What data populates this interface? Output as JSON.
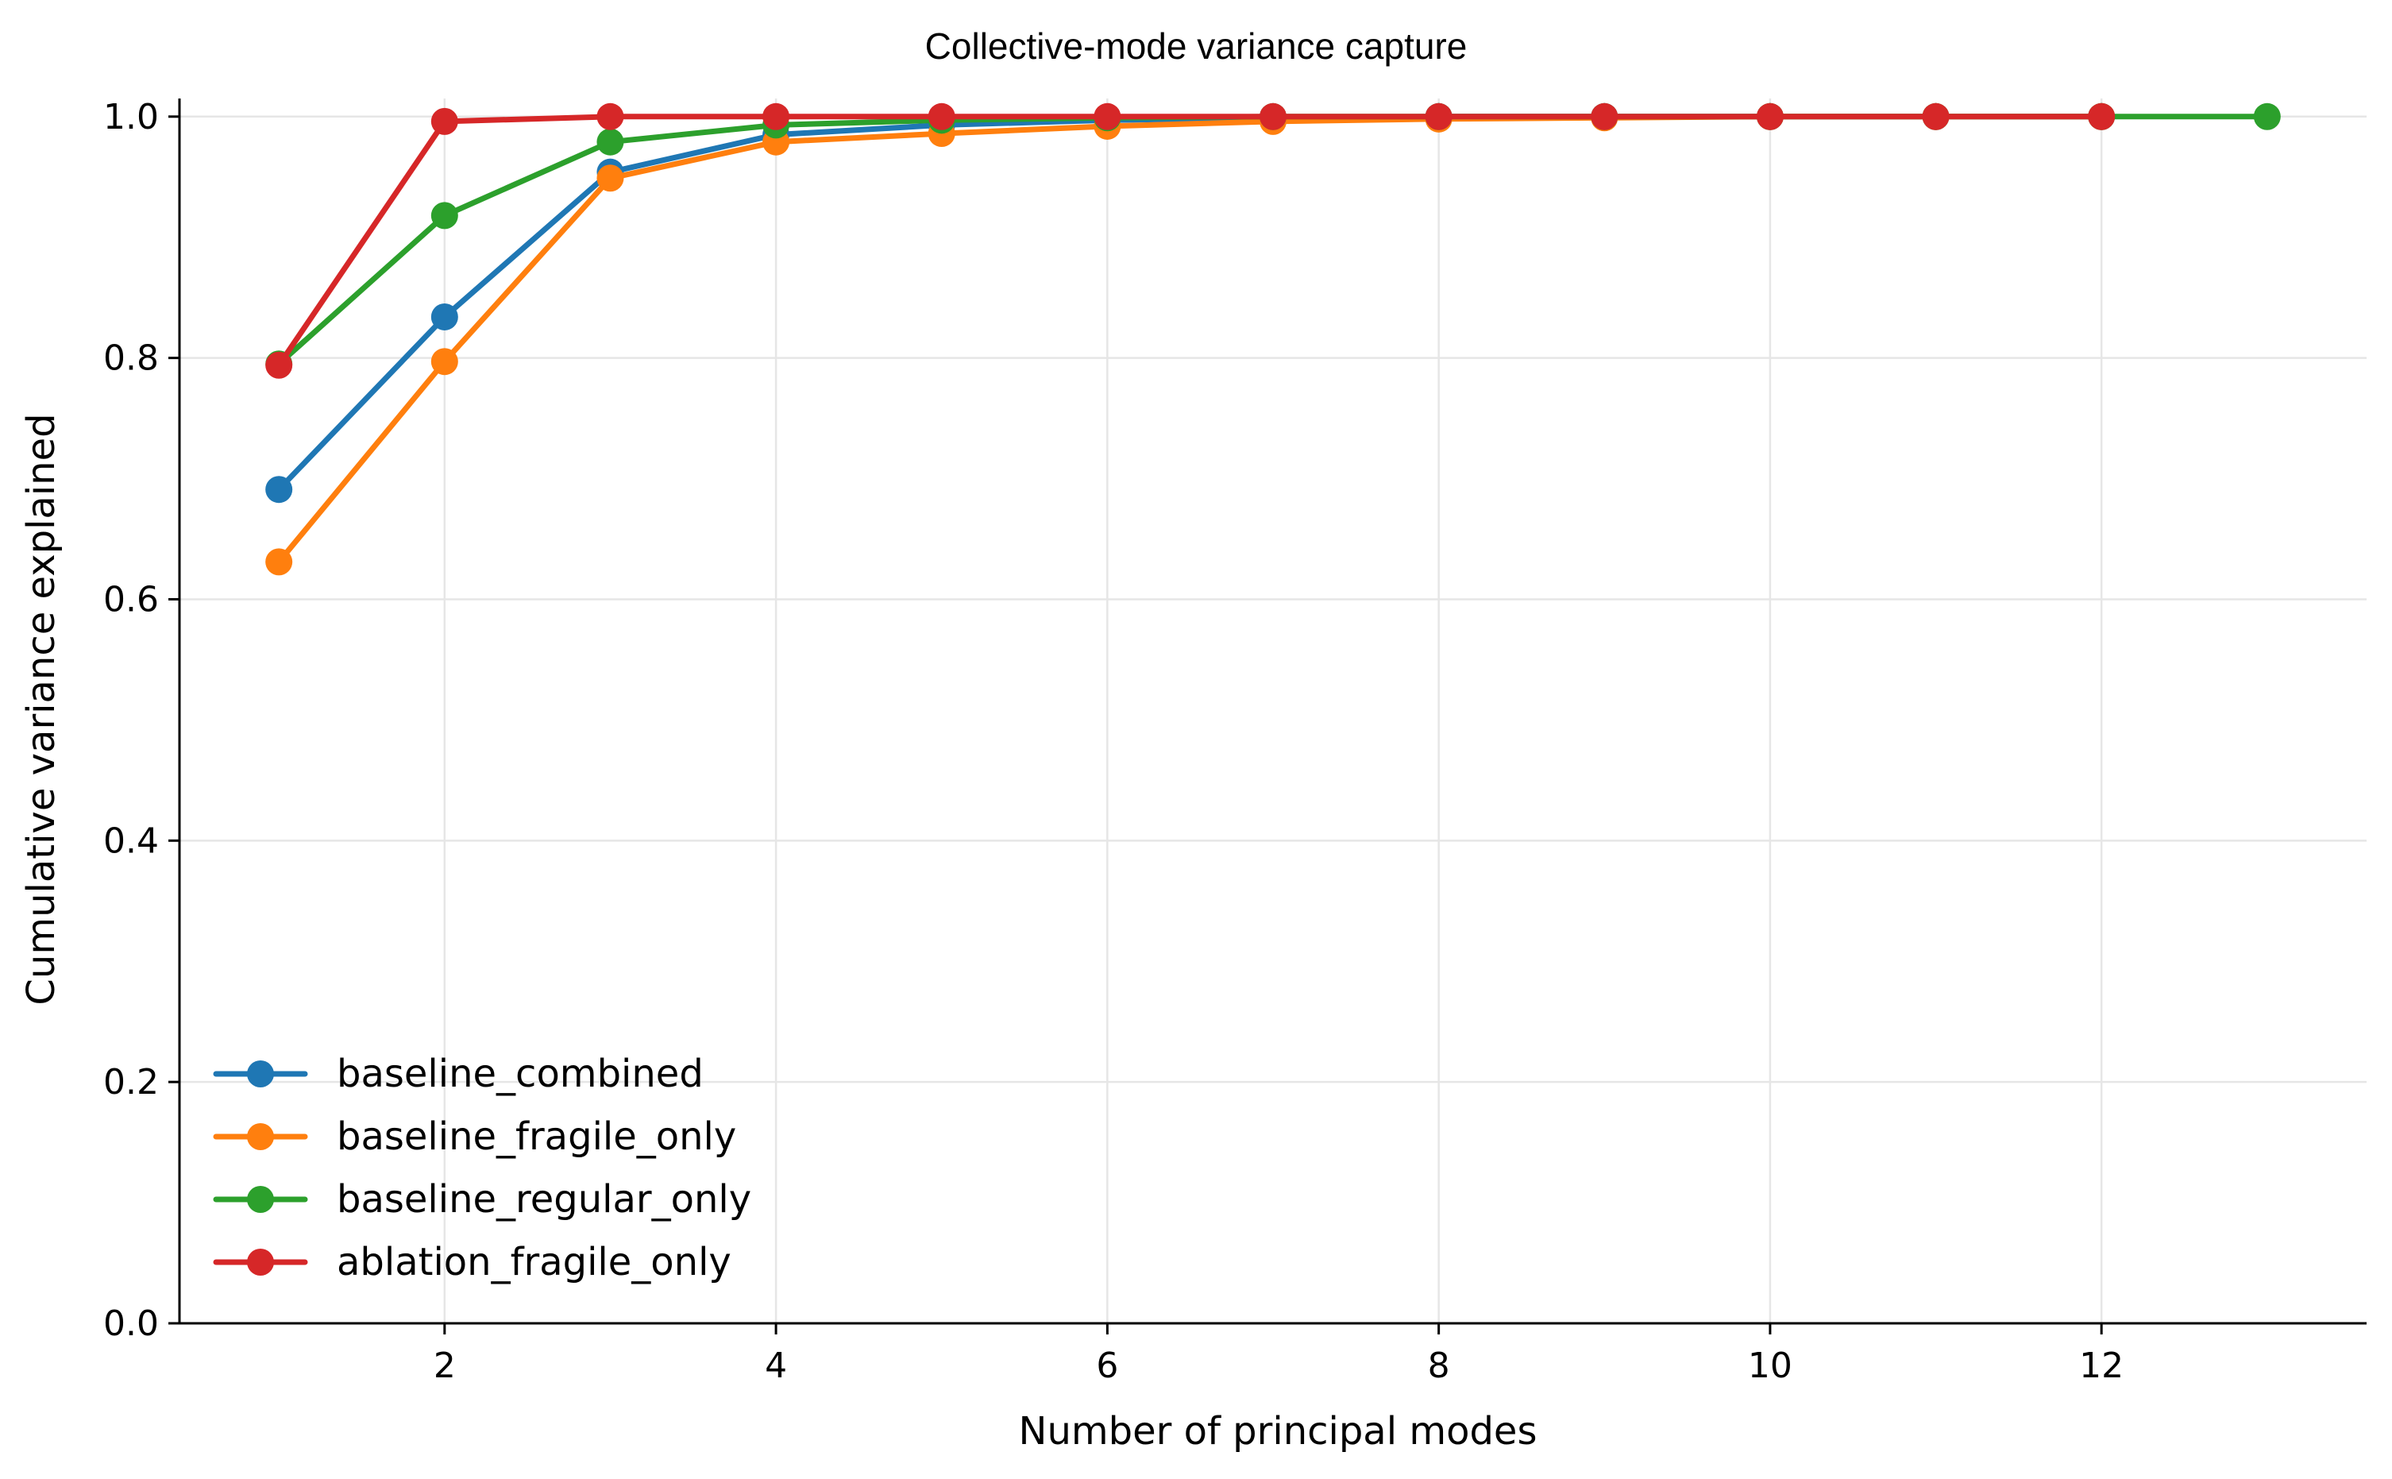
{
  "chart_data": {
    "type": "line",
    "title": "Collective-mode variance capture",
    "xlabel": "Number of principal modes",
    "ylabel": "Cumulative variance explained",
    "xlim": [
      0.4,
      13.6
    ],
    "ylim": [
      0.0,
      1.015
    ],
    "xticks": [
      2,
      4,
      6,
      8,
      10,
      12
    ],
    "yticks": [
      0.0,
      0.2,
      0.4,
      0.6,
      0.8,
      1.0
    ],
    "grid": true,
    "legend_position": "lower-left",
    "series": [
      {
        "name": "baseline_combined",
        "color": "#1f77b4",
        "x": [
          1,
          2,
          3,
          4,
          5,
          6,
          7,
          8,
          9,
          10,
          11,
          12
        ],
        "y": [
          0.691,
          0.834,
          0.954,
          0.985,
          0.993,
          0.997,
          0.999,
          1.0,
          1.0,
          1.0,
          1.0,
          1.0
        ]
      },
      {
        "name": "baseline_fragile_only",
        "color": "#ff7f0e",
        "x": [
          1,
          2,
          3,
          4,
          5,
          6,
          7,
          8,
          9,
          10,
          11,
          12
        ],
        "y": [
          0.631,
          0.797,
          0.949,
          0.979,
          0.986,
          0.992,
          0.996,
          0.998,
          0.999,
          1.0,
          1.0,
          1.0
        ]
      },
      {
        "name": "baseline_regular_only",
        "color": "#2ca02c",
        "x": [
          1,
          2,
          3,
          4,
          5,
          6,
          7,
          8,
          9,
          10,
          11,
          12,
          13
        ],
        "y": [
          0.795,
          0.918,
          0.979,
          0.993,
          0.997,
          0.999,
          1.0,
          1.0,
          1.0,
          1.0,
          1.0,
          1.0,
          1.0
        ]
      },
      {
        "name": "ablation_fragile_only",
        "color": "#d62728",
        "x": [
          1,
          2,
          3,
          4,
          5,
          6,
          7,
          8,
          9,
          10,
          11,
          12
        ],
        "y": [
          0.794,
          0.996,
          1.0,
          1.0,
          1.0,
          1.0,
          1.0,
          1.0,
          1.0,
          1.0,
          1.0,
          1.0
        ]
      }
    ]
  }
}
